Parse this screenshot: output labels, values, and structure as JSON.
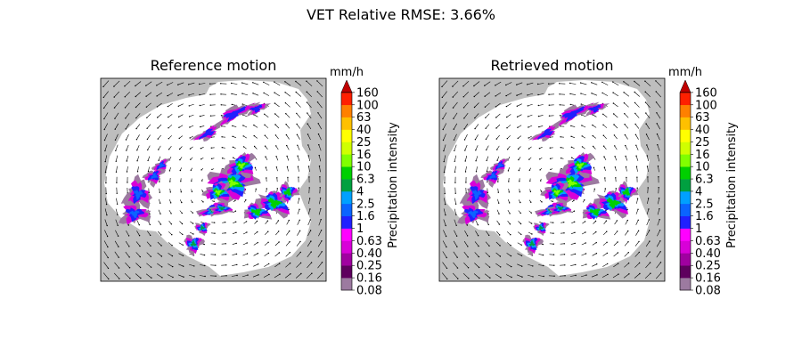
{
  "figure": {
    "title": "VET Relative RMSE: 3.66%"
  },
  "colorbar": {
    "unit": "mm/h",
    "label": "Precipitation intensity",
    "levels": [
      "0.08",
      "0.16",
      "0.25",
      "0.40",
      "0.63",
      "1",
      "1.6",
      "2.5",
      "4",
      "6.3",
      "10",
      "16",
      "25",
      "40",
      "63",
      "100",
      "160"
    ],
    "colors": [
      "#9c7aa0",
      "#5e005e",
      "#a000a0",
      "#d800d8",
      "#ff00ff",
      "#2020ff",
      "#0a64ff",
      "#00a0ff",
      "#00a040",
      "#00d000",
      "#80ff00",
      "#d0ff00",
      "#ffff00",
      "#ffc000",
      "#ff8000",
      "#ff2000",
      "#c00000"
    ],
    "extend": "max"
  },
  "colors": {
    "no_data": "#bebebe",
    "radar_coverage": "#ffffff",
    "vectors": "#000000"
  },
  "chart_data": [
    {
      "type": "heatmap",
      "title": "Reference motion",
      "variable": "Precipitation intensity",
      "unit": "mm/h",
      "overlay": "motion vector field (quiver)",
      "flow_pattern": "anticlockwise rotation around the domain centre",
      "axes_ticks": "none",
      "precip_cells": [
        {
          "id": "northeast-band",
          "peak_mmh": 1.0
        },
        {
          "id": "north-small-band",
          "peak_mmh": 1.0
        },
        {
          "id": "west-cluster",
          "peak_mmh": 1.6
        },
        {
          "id": "central-core",
          "peak_mmh": 10
        },
        {
          "id": "east-cluster",
          "peak_mmh": 6.3
        },
        {
          "id": "south-cells",
          "peak_mmh": 4
        }
      ]
    },
    {
      "type": "heatmap",
      "title": "Retrieved motion",
      "variable": "Precipitation intensity",
      "unit": "mm/h",
      "overlay": "motion vector field (quiver)",
      "flow_pattern": "anticlockwise rotation around the domain centre",
      "axes_ticks": "none",
      "precip_cells": [
        {
          "id": "northeast-band",
          "peak_mmh": 1.0
        },
        {
          "id": "north-small-band",
          "peak_mmh": 1.0
        },
        {
          "id": "west-cluster",
          "peak_mmh": 1.6
        },
        {
          "id": "central-core",
          "peak_mmh": 10
        },
        {
          "id": "east-cluster",
          "peak_mmh": 6.3
        },
        {
          "id": "south-cells",
          "peak_mmh": 4
        }
      ]
    }
  ]
}
